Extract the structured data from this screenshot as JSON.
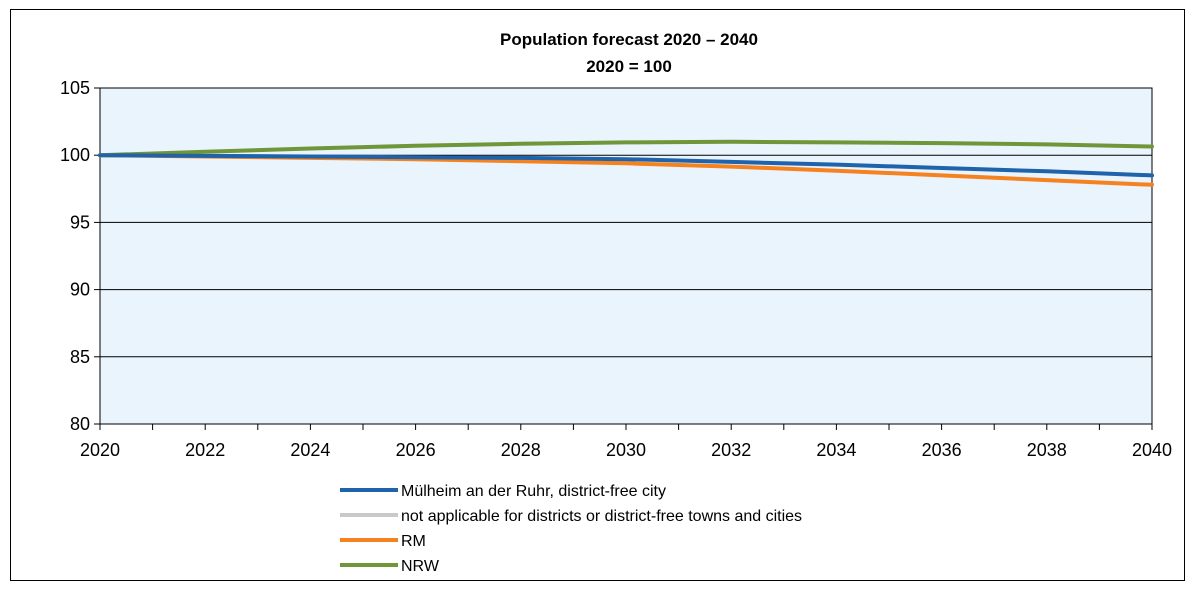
{
  "chart_data": {
    "type": "line",
    "title": "Population forecast 2020 – 2040",
    "subtitle": "2020 = 100",
    "xlabel": "",
    "ylabel": "",
    "xlim": [
      2020,
      2040
    ],
    "ylim": [
      80,
      105
    ],
    "x_ticks": [
      2020,
      2022,
      2024,
      2026,
      2028,
      2030,
      2032,
      2034,
      2036,
      2038,
      2040
    ],
    "y_ticks": [
      80,
      85,
      90,
      95,
      100,
      105
    ],
    "grid": true,
    "legend_position": "bottom",
    "plot_background": "#eaf4fd",
    "series": [
      {
        "name": "Mülheim an der Ruhr, district-free city",
        "color": "#1f63aa",
        "x": [
          2020,
          2022,
          2024,
          2026,
          2028,
          2030,
          2032,
          2034,
          2036,
          2038,
          2040
        ],
        "values": [
          100,
          99.95,
          99.9,
          99.85,
          99.8,
          99.7,
          99.5,
          99.3,
          99.05,
          98.8,
          98.5
        ]
      },
      {
        "name": "not applicable for districts or district-free towns and cities",
        "color": "#c9c9c9",
        "x": [],
        "values": []
      },
      {
        "name": "RM",
        "color": "#f5821f",
        "x": [
          2020,
          2022,
          2024,
          2026,
          2028,
          2030,
          2032,
          2034,
          2036,
          2038,
          2040
        ],
        "values": [
          100,
          99.9,
          99.8,
          99.7,
          99.55,
          99.4,
          99.15,
          98.85,
          98.5,
          98.15,
          97.8
        ]
      },
      {
        "name": "NRW",
        "color": "#70963a",
        "x": [
          2020,
          2022,
          2024,
          2026,
          2028,
          2030,
          2032,
          2034,
          2036,
          2038,
          2040
        ],
        "values": [
          100,
          100.25,
          100.5,
          100.7,
          100.85,
          100.95,
          101.0,
          100.95,
          100.9,
          100.8,
          100.65
        ]
      }
    ]
  }
}
